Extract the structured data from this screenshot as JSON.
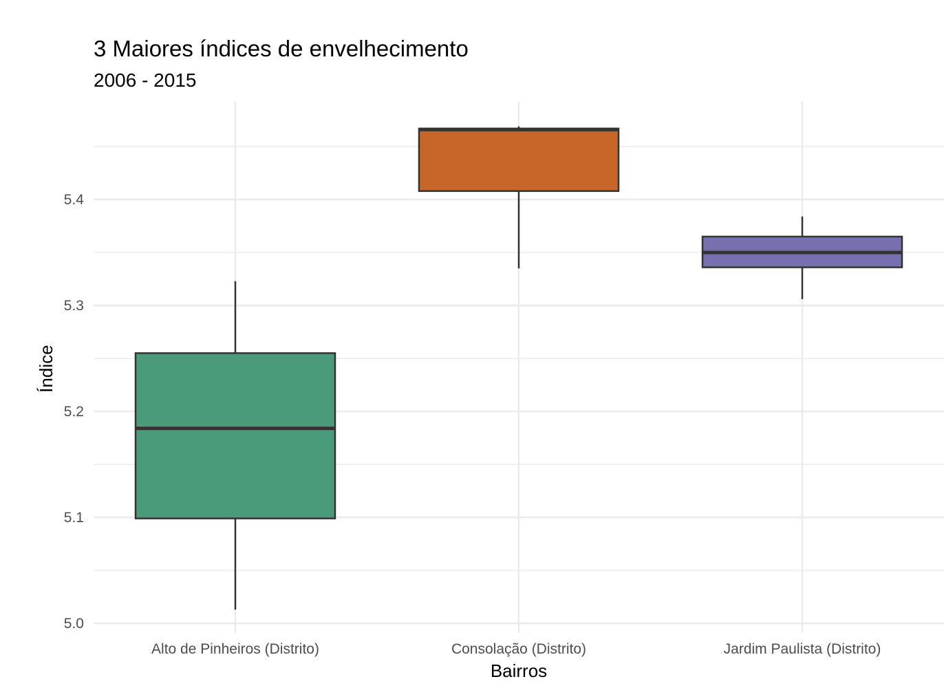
{
  "chart_data": {
    "type": "boxplot",
    "title": "3 Maiores índices de envelhecimento",
    "subtitle": "2006 - 2015",
    "xlabel": "Bairros",
    "ylabel": "Índice",
    "categories": [
      "Alto de Pinheiros (Distrito)",
      "Consolação (Distrito)",
      "Jardim Paulista (Distrito)"
    ],
    "boxes": [
      {
        "category": "Alto de Pinheiros (Distrito)",
        "min": 5.013,
        "q1": 5.099,
        "median": 5.184,
        "q3": 5.255,
        "max": 5.323,
        "color": "#4a9b79"
      },
      {
        "category": "Consolação (Distrito)",
        "min": 5.335,
        "q1": 5.408,
        "median": 5.466,
        "q3": 5.467,
        "max": 5.469,
        "color": "#c8662a"
      },
      {
        "category": "Jardim Paulista (Distrito)",
        "min": 5.306,
        "q1": 5.336,
        "median": 5.35,
        "q3": 5.365,
        "max": 5.384,
        "color": "#7670b0"
      }
    ],
    "yticks": [
      5.0,
      5.1,
      5.2,
      5.3,
      5.4
    ],
    "ytick_labels": [
      "5.0",
      "5.1",
      "5.2",
      "5.3",
      "5.4"
    ],
    "ylim": [
      4.99,
      5.5
    ],
    "grid": true,
    "legend": "none"
  }
}
